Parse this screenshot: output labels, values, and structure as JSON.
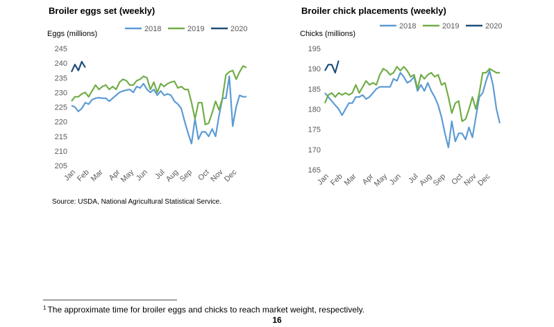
{
  "chart_data": [
    {
      "type": "line",
      "title": "Broiler eggs set (weekly)",
      "y_label": "Eggs (millions)",
      "x": [
        1,
        2,
        3,
        4,
        5,
        6,
        7,
        8,
        9,
        10,
        11,
        12,
        13,
        14,
        15,
        16,
        17,
        18,
        19,
        20,
        21,
        22,
        23,
        24,
        25,
        26,
        27,
        28,
        29,
        30,
        31,
        32,
        33,
        34,
        35,
        36,
        37,
        38,
        39,
        40,
        41,
        42,
        43,
        44,
        45,
        46,
        47,
        48,
        49,
        50,
        51,
        52
      ],
      "xlim": [
        1,
        52
      ],
      "xticks": [
        {
          "value": 1,
          "label": "Jan"
        },
        {
          "value": 5,
          "label": "Feb"
        },
        {
          "value": 9,
          "label": "Mar"
        },
        {
          "value": 14,
          "label": "Apr"
        },
        {
          "value": 18,
          "label": "May"
        },
        {
          "value": 22,
          "label": "Jun"
        },
        {
          "value": 27,
          "label": "Jul"
        },
        {
          "value": 31,
          "label": "Aug"
        },
        {
          "value": 35,
          "label": "Sep"
        },
        {
          "value": 40,
          "label": "Oct"
        },
        {
          "value": 44,
          "label": "Nov"
        },
        {
          "value": 48,
          "label": "Dec"
        }
      ],
      "ylim": [
        205,
        245
      ],
      "yticks": [
        205,
        210,
        215,
        220,
        225,
        230,
        235,
        240,
        245
      ],
      "series": [
        {
          "name": "2018",
          "color": "#5b9bd5",
          "values": [
            225.5,
            225,
            223.5,
            224.5,
            226.5,
            226,
            227.5,
            228,
            228.2,
            228,
            228,
            227,
            228,
            229,
            230,
            230.5,
            230.8,
            231,
            230,
            232,
            231.5,
            233,
            231,
            230,
            231,
            229,
            230.5,
            229,
            229.5,
            229,
            227,
            226,
            224.5,
            220,
            216,
            212.5,
            221,
            214,
            216.5,
            216.5,
            215,
            217.5,
            215,
            222,
            228,
            228,
            235.5,
            218.5,
            225,
            229,
            228.5,
            228.5
          ]
        },
        {
          "name": "2019",
          "color": "#70ad47",
          "values": [
            227,
            228.5,
            228.5,
            229.5,
            230,
            228.5,
            230.5,
            232.5,
            231,
            232,
            232.5,
            231,
            232,
            231,
            233.5,
            234.5,
            234,
            232.5,
            232.5,
            234,
            234.5,
            235.5,
            235,
            231,
            233.5,
            230,
            233,
            232,
            233,
            233.5,
            233.8,
            231.5,
            232,
            231,
            231,
            226.5,
            221,
            226.5,
            226.5,
            219,
            219.5,
            223,
            227,
            224,
            228,
            236,
            237,
            237.5,
            234.5,
            237,
            239,
            238.5
          ]
        },
        {
          "name": "2020",
          "color": "#1f4e79",
          "x": [
            1,
            2,
            3,
            4,
            5
          ],
          "values": [
            237,
            239.5,
            237.5,
            240.5,
            238.5
          ]
        }
      ]
    },
    {
      "type": "line",
      "title": "Broiler chick placements (weekly)",
      "y_label": "Chicks (millions)",
      "x": [
        1,
        2,
        3,
        4,
        5,
        6,
        7,
        8,
        9,
        10,
        11,
        12,
        13,
        14,
        15,
        16,
        17,
        18,
        19,
        20,
        21,
        22,
        23,
        24,
        25,
        26,
        27,
        28,
        29,
        30,
        31,
        32,
        33,
        34,
        35,
        36,
        37,
        38,
        39,
        40,
        41,
        42,
        43,
        44,
        45,
        46,
        47,
        48,
        49,
        50,
        51,
        52
      ],
      "xlim": [
        1,
        52
      ],
      "xticks": [
        {
          "value": 1,
          "label": "Jan"
        },
        {
          "value": 5,
          "label": "Feb"
        },
        {
          "value": 9,
          "label": "Mar"
        },
        {
          "value": 14,
          "label": "Apr"
        },
        {
          "value": 18,
          "label": "May"
        },
        {
          "value": 22,
          "label": "Jun"
        },
        {
          "value": 27,
          "label": "Jul"
        },
        {
          "value": 31,
          "label": "Aug"
        },
        {
          "value": 35,
          "label": "Sep"
        },
        {
          "value": 40,
          "label": "Oct"
        },
        {
          "value": 44,
          "label": "Nov"
        },
        {
          "value": 48,
          "label": "Dec"
        }
      ],
      "ylim": [
        165,
        195
      ],
      "yticks": [
        165,
        170,
        175,
        180,
        185,
        190,
        195
      ],
      "series": [
        {
          "name": "2018",
          "color": "#5b9bd5",
          "values": [
            184,
            183,
            182,
            181,
            180,
            178.5,
            180,
            181.5,
            181.5,
            183,
            183,
            183.5,
            182.5,
            183,
            184,
            185,
            185.5,
            185.5,
            185.5,
            185.5,
            187.5,
            187,
            189,
            188,
            186.5,
            187,
            188,
            184.5,
            186,
            184.5,
            186.5,
            184.5,
            183,
            181,
            178,
            174,
            170.5,
            177,
            172,
            174,
            174,
            172.5,
            175.5,
            173,
            178,
            183,
            184,
            187,
            189.5,
            186,
            180,
            176.5
          ]
        },
        {
          "name": "2019",
          "color": "#70ad47",
          "values": [
            181.5,
            183.5,
            184,
            183,
            184,
            183.5,
            184,
            183.5,
            184,
            186,
            184,
            185.5,
            187,
            186,
            186.5,
            186,
            188.5,
            190,
            189.5,
            188.5,
            189,
            190.5,
            189.5,
            190.5,
            189.5,
            188,
            188.5,
            185,
            188.5,
            187.5,
            188.5,
            189,
            188,
            188.5,
            186,
            186.5,
            183,
            179,
            181.5,
            182,
            177,
            177.5,
            180,
            183,
            180,
            184,
            189,
            189,
            190,
            189.5,
            189,
            189
          ]
        },
        {
          "name": "2020",
          "color": "#1f4e79",
          "x": [
            1,
            2,
            3,
            4,
            5
          ],
          "values": [
            189.5,
            191,
            191,
            189,
            192
          ]
        }
      ]
    }
  ],
  "source": "Source: USDA, National Agricultural Statistical Service.",
  "footnote": {
    "marker": "1",
    "text": "The approximate time for broiler eggs and chicks to reach market weight, respectively."
  },
  "page_number": "16"
}
